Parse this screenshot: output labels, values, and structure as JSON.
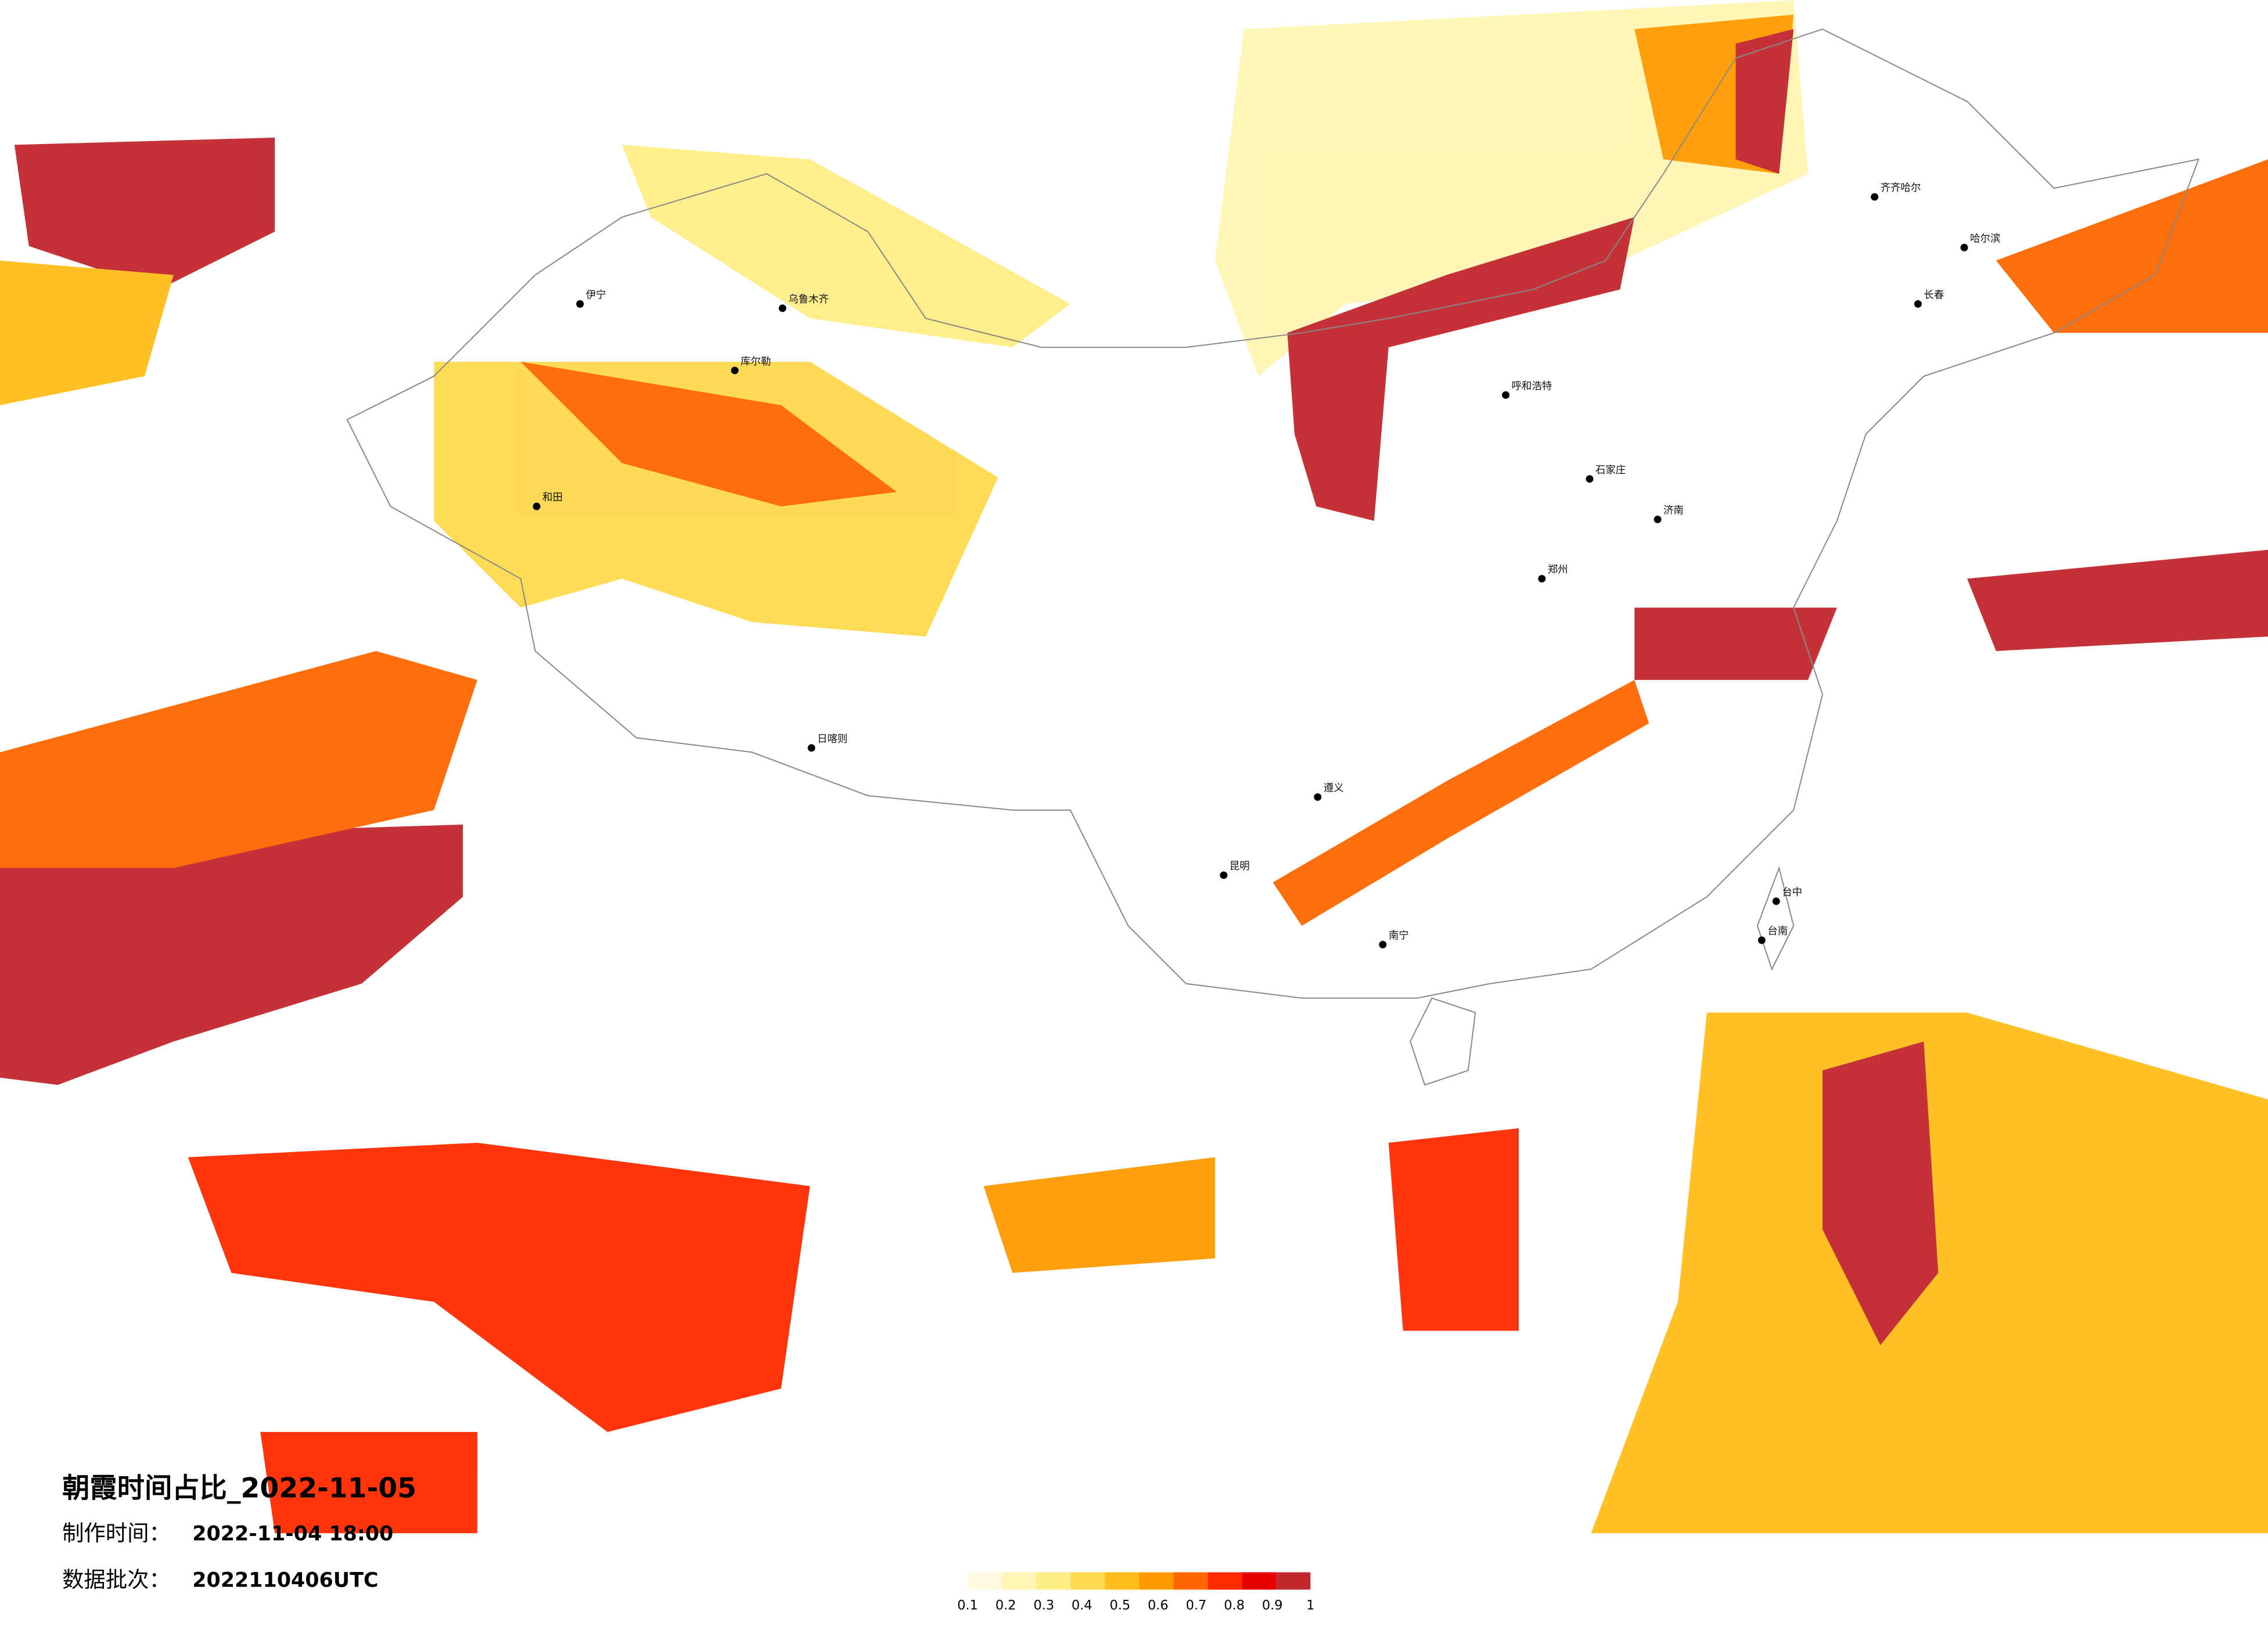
{
  "header": {
    "title": "朝霞时间占比_2022-11-05",
    "made_label": "制作时间：",
    "made_value": "2022-11-04 18:00",
    "batch_label": "数据批次：",
    "batch_value": "2022110406UTC"
  },
  "legend": {
    "ticks": [
      0.1,
      0.2,
      0.3,
      0.4,
      0.5,
      0.6,
      0.7,
      0.8,
      0.9,
      1
    ],
    "colors": [
      "#fffbe0",
      "#fff5b4",
      "#ffee86",
      "#ffd94d",
      "#ffbe1a",
      "#ff9a00",
      "#ff6600",
      "#ff2a00",
      "#e60000",
      "#c1272d"
    ]
  },
  "cities": [
    "伊宁",
    "乌鲁木齐",
    "库尔勒",
    "和田",
    "日喀则",
    "呼和浩特",
    "齐齐哈尔",
    "哈尔滨",
    "长春",
    "石家庄",
    "济南",
    "郑州",
    "遵义",
    "昆明",
    "南宁",
    "台中",
    "台南"
  ]
}
